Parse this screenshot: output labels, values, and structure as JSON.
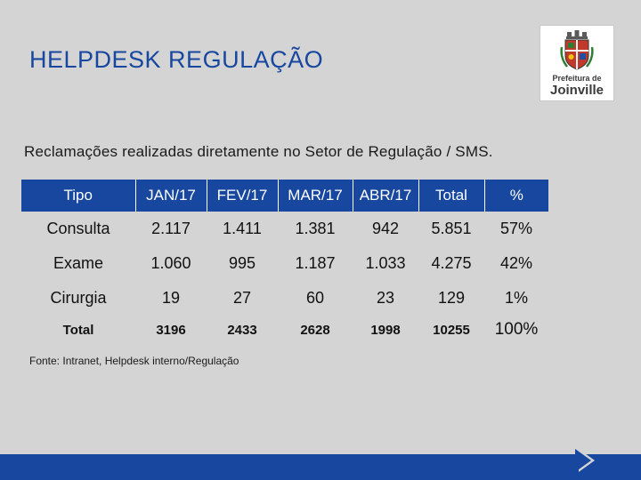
{
  "header": {
    "title": "HELPDESK REGULAÇÃO"
  },
  "logo": {
    "line1": "Prefeitura de",
    "line2": "Joinville"
  },
  "subtitle": "Reclamações realizadas diretamente no Setor de Regulação / SMS.",
  "table": {
    "headers": [
      "Tipo",
      "JAN/17",
      "FEV/17",
      "MAR/17",
      "ABR/17",
      "Total",
      "%"
    ],
    "rows": [
      [
        "Consulta",
        "2.117",
        "1.411",
        "1.381",
        "942",
        "5.851",
        "57%"
      ],
      [
        "Exame",
        "1.060",
        "995",
        "1.187",
        "1.033",
        "4.275",
        "42%"
      ],
      [
        "Cirurgia",
        "19",
        "27",
        "60",
        "23",
        "129",
        "1%"
      ]
    ],
    "total": [
      "Total",
      "3196",
      "2433",
      "2628",
      "1998",
      "10255",
      "100%"
    ]
  },
  "source": "Fonte: Intranet, Helpdesk interno/Regulação",
  "colors": {
    "brand_blue": "#17479e",
    "background": "#d4d4d4"
  }
}
